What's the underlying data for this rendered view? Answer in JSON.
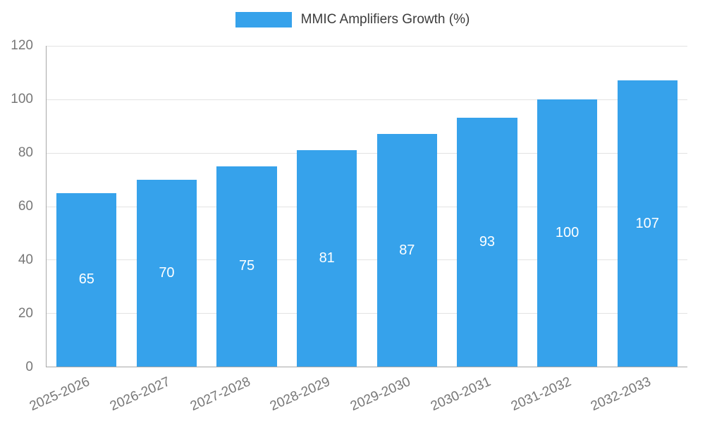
{
  "legend": {
    "label": "MMIC Amplifiers Growth (%)",
    "swatch_color": "#36A2EB"
  },
  "chart_data": {
    "type": "bar",
    "title": "MMIC Amplifiers Growth (%)",
    "categories": [
      "2025-2026",
      "2026-2027",
      "2027-2028",
      "2028-2029",
      "2029-2030",
      "2030-2031",
      "2031-2032",
      "2032-2033"
    ],
    "values": [
      65,
      70,
      75,
      81,
      87,
      93,
      100,
      107
    ],
    "xlabel": "",
    "ylabel": "",
    "ylim": [
      0,
      120
    ],
    "yticks": [
      0,
      20,
      40,
      60,
      80,
      100,
      120
    ],
    "grid": "horizontal",
    "legend_position": "top",
    "bar_color": "#36A2EB",
    "value_label_color": "#ffffff",
    "axis_text_color": "#777777"
  }
}
